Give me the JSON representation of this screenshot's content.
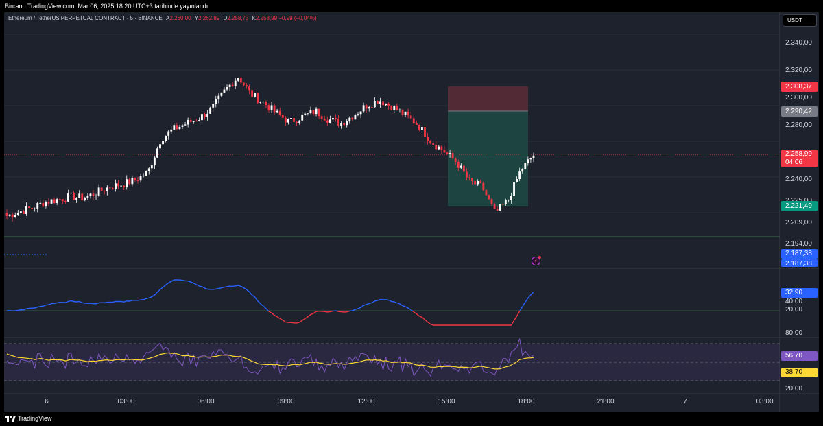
{
  "header": {
    "attribution": "Bircano TradingView.com, Mar 06, 2025 18:20 UTC+3 tarihinde yayınlandı"
  },
  "legend": {
    "symbol": "Ethereum / TetherUS PERPETUAL CONTRACT · 5 · BINANCE",
    "open_label": "A",
    "open": "2.260,00",
    "high_label": "Y",
    "high": "2.262,89",
    "low_label": "D",
    "low": "2.258,73",
    "close_label": "K",
    "close": "2.258,99",
    "change": "−0,99 (−0,04%)"
  },
  "currency_button": "USDT",
  "price_axis": {
    "ticks": [
      "2.340,00",
      "2.320,00",
      "2.300,00",
      "2.280,00",
      "2.240,00",
      "2.225,00",
      "2.209,00",
      "2.194,00"
    ],
    "tags": {
      "stop_loss": "2.308,37",
      "entry": "2.290,42",
      "last_price": "2.258,99",
      "countdown": "04:06",
      "take_profit": "2.221,49",
      "alert_1": "2.187,38",
      "alert_2": "2.187,38"
    }
  },
  "indicator1_axis": {
    "ticks": [
      "40,00",
      "20,00"
    ],
    "value_tag": "32,90"
  },
  "indicator2_axis": {
    "ticks": [
      "80,00",
      "20,00"
    ],
    "value_tag_1": "56,70",
    "value_tag_2": "38,70"
  },
  "time_axis": [
    "6",
    "03:00",
    "06:00",
    "09:00",
    "12:00",
    "15:00",
    "18:00",
    "21:00",
    "7",
    "03:00"
  ],
  "footer": {
    "brand": "TradingView"
  },
  "colors": {
    "background": "#1e222d",
    "up": "#ffffff",
    "down": "#f23645",
    "stop_zone": "#5c2b37",
    "target_zone": "#1d4a45",
    "last_price": "#f23645",
    "entry_tag": "#787b86",
    "target_tag": "#089981",
    "alert_tag": "#2962ff",
    "ind1_up": "#2962ff",
    "ind1_down": "#f23645",
    "ind2_line": "#7e57c2",
    "ind2_signal": "#fdd835"
  },
  "chart_data": {
    "type": "candlestick",
    "symbol": "ETHUSDT.P",
    "interval": "5",
    "ylim": [
      2194,
      2340
    ],
    "x": [
      "00:00",
      "03:00",
      "06:00",
      "09:00",
      "12:00",
      "15:00",
      "18:00"
    ],
    "close_path": [
      2215,
      2218,
      2221,
      2225,
      2227,
      2229,
      2228,
      2232,
      2236,
      2238,
      2241,
      2247,
      2271,
      2278,
      2282,
      2286,
      2293,
      2306,
      2316,
      2303,
      2297,
      2289,
      2283,
      2287,
      2291,
      2285,
      2282,
      2288,
      2295,
      2299,
      2294,
      2288,
      2281,
      2269,
      2262,
      2254,
      2240,
      2236,
      2217,
      2226,
      2248,
      2259
    ],
    "position": {
      "direction": "short",
      "entry": 2290.42,
      "stop": 2308.37,
      "target": 2221.49
    },
    "last_price": 2258.99
  }
}
